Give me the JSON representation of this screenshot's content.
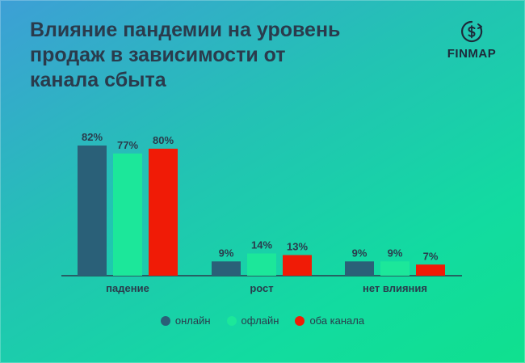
{
  "title_lines": [
    "Влияние пандемии на уровень",
    "продаж в зависимости от",
    "канала сбыта"
  ],
  "logo": {
    "text": "FINMAP",
    "icon": "finmap-logo-icon"
  },
  "colors": {
    "text": "#2a3b4c",
    "axis": "#2a3b4c",
    "series": [
      "#2a6078",
      "#1ce79a",
      "#f01b06"
    ]
  },
  "chart_data": {
    "type": "bar",
    "title": "Влияние пандемии на уровень продаж в зависимости от канала сбыта",
    "categories": [
      "падение",
      "рост",
      "нет влияния"
    ],
    "series": [
      {
        "name": "онлайн",
        "values": [
          82,
          9,
          9
        ]
      },
      {
        "name": "офлайн",
        "values": [
          77,
          14,
          9
        ]
      },
      {
        "name": "оба канала",
        "values": [
          80,
          13,
          7
        ]
      }
    ],
    "value_suffix": "%",
    "ylim": [
      0,
      82
    ],
    "grid": false,
    "legend_position": "bottom"
  }
}
